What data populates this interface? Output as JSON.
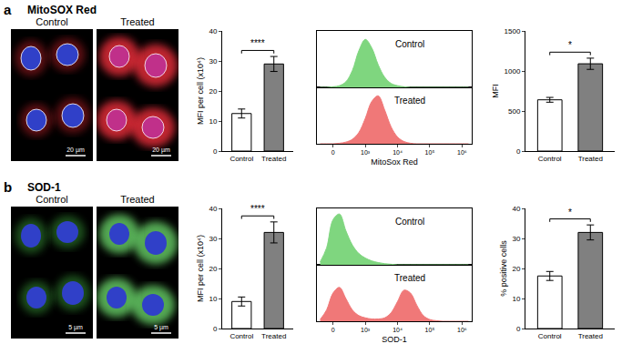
{
  "figure": {
    "panels": [
      {
        "label": "a",
        "title": "MitoSOX Red",
        "images": [
          {
            "title": "Control",
            "scale_bar": "20 µm"
          },
          {
            "title": "Treated",
            "scale_bar": "20 µm"
          }
        ]
      },
      {
        "label": "b",
        "title": "SOD-1",
        "images": [
          {
            "title": "Control",
            "scale_bar": "5 µm"
          },
          {
            "title": "Treated",
            "scale_bar": "5 µm"
          }
        ]
      }
    ]
  },
  "chart_data": [
    {
      "type": "bar",
      "y_label": "MFI per cell (x10⁴)",
      "categories": [
        "Control",
        "Treated"
      ],
      "values": [
        12.5,
        29
      ],
      "errors": [
        1.5,
        2.5
      ],
      "colors": [
        "#ffffff",
        "#808080"
      ],
      "ylim": [
        0,
        40
      ],
      "yticks": [
        0,
        10,
        20,
        30,
        40
      ],
      "annotation": "****"
    },
    {
      "type": "area",
      "x_label": "MitoSox Red",
      "x": [
        -0.4,
        -0.2,
        0,
        0.2,
        0.4,
        0.6,
        0.8,
        1.0,
        1.2,
        1.4,
        1.6,
        1.8,
        2.0,
        2.2,
        2.4,
        2.6,
        2.8,
        3.0,
        3.2,
        3.4,
        3.6,
        3.8,
        4.0,
        4.2
      ],
      "series": [
        {
          "name": "Control",
          "color": "#7fd67f",
          "values": [
            0,
            0,
            0.01,
            0.03,
            0.1,
            0.3,
            0.65,
            0.85,
            0.7,
            0.4,
            0.18,
            0.07,
            0.03,
            0.01,
            0,
            0,
            0,
            0,
            0,
            0,
            0,
            0,
            0,
            0
          ]
        },
        {
          "name": "Treated",
          "color": "#f07878",
          "values": [
            0,
            0,
            0,
            0.01,
            0.03,
            0.08,
            0.2,
            0.45,
            0.75,
            0.85,
            0.6,
            0.3,
            0.12,
            0.04,
            0.01,
            0,
            0,
            0,
            0,
            0,
            0,
            0,
            0,
            0
          ]
        }
      ],
      "xlim": [
        -0.5,
        4.3
      ],
      "xticks": [
        {
          "value": 0,
          "label": "0"
        },
        {
          "value": 1,
          "label": "10³"
        },
        {
          "value": 2,
          "label": "10⁴"
        },
        {
          "value": 3,
          "label": "10⁵"
        },
        {
          "value": 4,
          "label": "10⁶"
        }
      ],
      "ylim": [
        0,
        1
      ],
      "tick_labels": "x"
    },
    {
      "type": "bar",
      "y_label": "MFI",
      "categories": [
        "Control",
        "Treated"
      ],
      "values": [
        640,
        1090
      ],
      "errors": [
        30,
        70
      ],
      "colors": [
        "#ffffff",
        "#808080"
      ],
      "ylim": [
        0,
        1500
      ],
      "yticks": [
        0,
        500,
        1000,
        1500
      ],
      "annotation": "*"
    },
    {
      "type": "bar",
      "y_label": "MFI per cell (x10⁴)",
      "categories": [
        "Control",
        "Treated"
      ],
      "values": [
        9,
        32
      ],
      "errors": [
        1.5,
        3.5
      ],
      "colors": [
        "#ffffff",
        "#808080"
      ],
      "ylim": [
        0,
        40
      ],
      "yticks": [
        0,
        10,
        20,
        30,
        40
      ],
      "annotation": "****"
    },
    {
      "type": "area",
      "x_label": "SOD-1",
      "x": [
        -0.4,
        -0.2,
        0,
        0.2,
        0.4,
        0.6,
        0.8,
        1.0,
        1.2,
        1.4,
        1.6,
        1.8,
        2.0,
        2.2,
        2.4,
        2.6,
        2.8,
        3.0,
        3.2,
        3.4,
        3.6,
        3.8,
        4.0,
        4.2
      ],
      "series": [
        {
          "name": "Control",
          "color": "#7fd67f",
          "values": [
            0.05,
            0.3,
            0.8,
            0.9,
            0.6,
            0.35,
            0.2,
            0.12,
            0.07,
            0.04,
            0.02,
            0.01,
            0,
            0,
            0,
            0,
            0,
            0,
            0,
            0,
            0,
            0,
            0,
            0
          ]
        },
        {
          "name": "Treated",
          "color": "#f07878",
          "values": [
            0.03,
            0.2,
            0.5,
            0.6,
            0.4,
            0.2,
            0.1,
            0.06,
            0.04,
            0.04,
            0.06,
            0.15,
            0.35,
            0.55,
            0.5,
            0.28,
            0.1,
            0.03,
            0.01,
            0,
            0,
            0,
            0,
            0
          ]
        }
      ],
      "xlim": [
        -0.5,
        4.3
      ],
      "xticks": [
        {
          "value": 0,
          "label": "0"
        },
        {
          "value": 1,
          "label": "10³"
        },
        {
          "value": 2,
          "label": "10⁴"
        },
        {
          "value": 3,
          "label": "10⁵"
        },
        {
          "value": 4,
          "label": "10⁶"
        }
      ],
      "ylim": [
        0,
        1
      ],
      "tick_labels": "x"
    },
    {
      "type": "bar",
      "y_label": "% positive cells",
      "categories": [
        "Control",
        "Treated"
      ],
      "values": [
        17.5,
        32
      ],
      "errors": [
        1.5,
        2.5
      ],
      "colors": [
        "#ffffff",
        "#808080"
      ],
      "ylim": [
        0,
        40
      ],
      "yticks": [
        0,
        10,
        20,
        30,
        40
      ],
      "annotation": "*"
    }
  ]
}
